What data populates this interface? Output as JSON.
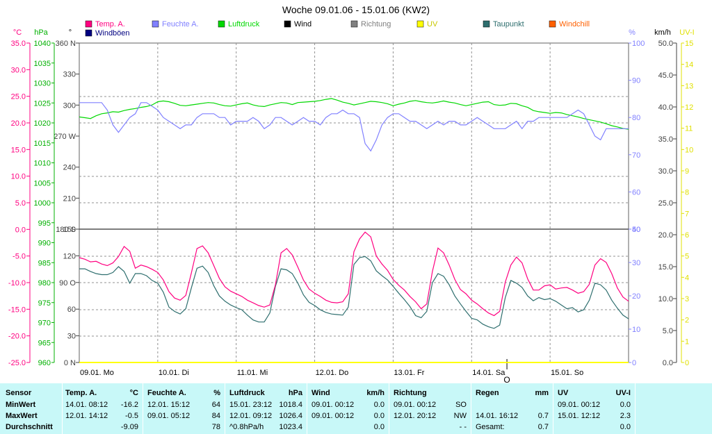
{
  "chart_data": {
    "type": "line",
    "title": "Woche 09.01.06 - 15.01.06 (KW2)",
    "legend": [
      {
        "name": "Temp. A.",
        "color": "#ff0080"
      },
      {
        "name": "Feuchte A.",
        "color": "#8080ff"
      },
      {
        "name": "Luftdruck",
        "color": "#00d800"
      },
      {
        "name": "Wind",
        "color": "#000000"
      },
      {
        "name": "Richtung",
        "color": "#808080"
      },
      {
        "name": "UV",
        "color": "#ffff00"
      },
      {
        "name": "Taupunkt",
        "color": "#2e6e6e"
      },
      {
        "name": "Windchill",
        "color": "#ff6000"
      },
      {
        "name": "Windböen",
        "color": "#000080"
      }
    ],
    "axis_units": {
      "temp": "°C",
      "pressure": "hPa",
      "direction": "°",
      "humidity": "%",
      "wind": "km/h",
      "uv": "UV-I"
    },
    "axes": {
      "temp": {
        "ticks": [
          "35.0",
          "30.0",
          "25.0",
          "20.0",
          "15.0",
          "10.0",
          "5.0",
          "0.0",
          "-5.0",
          "-10.0",
          "-15.0",
          "-20.0",
          "-25.0"
        ],
        "color": "#ff0080",
        "range": [
          -25,
          35
        ]
      },
      "pressure": {
        "ticks": [
          "1040",
          "1035",
          "1030",
          "1025",
          "1020",
          "1015",
          "1010",
          "1005",
          "1000",
          "995",
          "990",
          "985",
          "980",
          "975",
          "970",
          "965",
          "960"
        ],
        "color": "#00b000",
        "range": [
          960,
          1040
        ]
      },
      "direction_upper": {
        "ticks": [
          "360 N",
          "330",
          "300",
          "270 W",
          "240",
          "210",
          "180 S"
        ],
        "range": [
          180,
          360
        ]
      },
      "direction_lower": {
        "ticks": [
          "150",
          "120",
          "90 O",
          "60",
          "30",
          "0 N"
        ],
        "range": [
          0,
          150
        ]
      },
      "humidity_upper": {
        "ticks": [
          "100",
          "90",
          "80",
          "70",
          "60",
          "50"
        ],
        "color": "#8080ff",
        "range": [
          50,
          100
        ]
      },
      "humidity_lower": {
        "ticks": [
          "40",
          "30",
          "20",
          "10",
          "0"
        ],
        "color": "#8080ff",
        "range": [
          0,
          40
        ]
      },
      "wind": {
        "ticks": [
          "50.0",
          "45.0",
          "40.0",
          "35.0",
          "30.0",
          "25.0",
          "20.0",
          "15.0",
          "10.0",
          "5.0",
          "0.0"
        ],
        "range": [
          0,
          50
        ]
      },
      "uv": {
        "ticks": [
          "15",
          "14",
          "13",
          "12",
          "11",
          "10",
          "9",
          "8",
          "7",
          "6",
          "5",
          "4",
          "3",
          "2",
          "1",
          "0"
        ],
        "color": "#e0e000",
        "range": [
          0,
          15
        ]
      }
    },
    "x": {
      "day_labels": [
        "09.01.  Mo",
        "10.01.  Di",
        "11.01.  Mi",
        "12.01.  Do",
        "13.01.  Fr",
        "14.01.  Sa",
        "15.01.  So"
      ],
      "marker_label": "O",
      "marker_pos": 5.45,
      "range": [
        0,
        7
      ]
    },
    "series": [
      {
        "name": "Temp. A.",
        "color": "#ff0080",
        "axis": "temp",
        "values": [
          -5.3,
          -5.6,
          -6.1,
          -6.0,
          -6.5,
          -6.8,
          -6.3,
          -5.1,
          -3.2,
          -4.1,
          -7.3,
          -6.7,
          -7.0,
          -7.5,
          -8.1,
          -9.5,
          -11.7,
          -12.9,
          -13.3,
          -12.4,
          -8.2,
          -3.6,
          -3.1,
          -4.4,
          -6.8,
          -9.2,
          -10.8,
          -11.6,
          -12.1,
          -12.6,
          -13.3,
          -13.8,
          -14.3,
          -14.6,
          -14.2,
          -10.4,
          -4.4,
          -3.6,
          -4.8,
          -7.1,
          -9.5,
          -11.2,
          -12.0,
          -12.6,
          -13.3,
          -13.7,
          -13.8,
          -13.6,
          -12.1,
          -4.2,
          -1.8,
          -0.5,
          -1.4,
          -5.0,
          -6.5,
          -7.7,
          -9.4,
          -10.5,
          -11.4,
          -12.6,
          -13.6,
          -14.9,
          -14.0,
          -7.9,
          -3.5,
          -4.4,
          -6.7,
          -9.4,
          -11.3,
          -12.1,
          -13.3,
          -14.0,
          -14.9,
          -15.7,
          -16.2,
          -15.4,
          -9.9,
          -6.7,
          -5.2,
          -6.3,
          -9.3,
          -11.4,
          -11.4,
          -10.6,
          -10.4,
          -11.2,
          -11.0,
          -10.9,
          -11.4,
          -12.0,
          -11.7,
          -10.3,
          -6.7,
          -5.5,
          -6.2,
          -8.3,
          -11.0,
          -12.7,
          -13.5
        ]
      },
      {
        "name": "Taupunkt",
        "color": "#2e6e6e",
        "axis": "temp",
        "values": [
          -7.4,
          -7.4,
          -7.9,
          -8.3,
          -8.5,
          -8.5,
          -8.1,
          -7.0,
          -7.9,
          -10.1,
          -8.3,
          -8.3,
          -8.7,
          -9.6,
          -10.1,
          -11.8,
          -14.6,
          -15.4,
          -15.9,
          -14.9,
          -11.0,
          -7.3,
          -6.9,
          -8.1,
          -10.6,
          -12.5,
          -13.5,
          -14.2,
          -14.7,
          -15.1,
          -16.1,
          -17.0,
          -17.4,
          -17.4,
          -15.7,
          -10.7,
          -7.4,
          -7.6,
          -8.3,
          -10.1,
          -12.3,
          -13.7,
          -14.3,
          -15.1,
          -15.6,
          -15.9,
          -16.0,
          -16.1,
          -14.6,
          -6.6,
          -5.3,
          -5.1,
          -5.9,
          -7.8,
          -8.7,
          -9.5,
          -10.7,
          -12.0,
          -13.2,
          -14.5,
          -16.2,
          -16.6,
          -15.4,
          -10.0,
          -8.3,
          -8.8,
          -10.4,
          -12.5,
          -14.0,
          -15.4,
          -16.7,
          -17.0,
          -17.8,
          -18.3,
          -18.6,
          -18.0,
          -12.8,
          -9.6,
          -10.1,
          -10.9,
          -12.5,
          -13.4,
          -12.8,
          -13.2,
          -13.0,
          -13.5,
          -14.2,
          -14.9,
          -14.7,
          -15.5,
          -15.1,
          -13.3,
          -10.1,
          -10.4,
          -11.4,
          -13.3,
          -14.8,
          -16.1,
          -16.8
        ]
      },
      {
        "name": "Feuchte A.",
        "color": "#8080ff",
        "axis": "humidity",
        "values": [
          84,
          84,
          84,
          84,
          84,
          82,
          78,
          76,
          78,
          80,
          81,
          84,
          84,
          83,
          82,
          80,
          79,
          78,
          77,
          78,
          78,
          80,
          81,
          81,
          81,
          80,
          80,
          78,
          79,
          79,
          79,
          80,
          79,
          77,
          78,
          80,
          80,
          79,
          78,
          79,
          80,
          79,
          79,
          78,
          80,
          81,
          81,
          82,
          81,
          81,
          80,
          73,
          71,
          74,
          78,
          80,
          81,
          81,
          80,
          79,
          79,
          78,
          77,
          78,
          79,
          78,
          79,
          79,
          78,
          78,
          79,
          80,
          79,
          78,
          77,
          77,
          77,
          78,
          79,
          77,
          79,
          79,
          80,
          80,
          80,
          80,
          80,
          80,
          81,
          82,
          81,
          78,
          75,
          74,
          77,
          77,
          77,
          77,
          77
        ]
      },
      {
        "name": "Luftdruck",
        "color": "#00d800",
        "axis": "pressure",
        "values": [
          1021.5,
          1021.3,
          1021.1,
          1021.8,
          1022.3,
          1022.5,
          1022.8,
          1022.7,
          1023.1,
          1023.4,
          1023.6,
          1023.9,
          1024.1,
          1024.5,
          1025.3,
          1025.5,
          1025.3,
          1024.9,
          1024.4,
          1024.3,
          1024.5,
          1024.7,
          1024.9,
          1025.1,
          1025.0,
          1024.6,
          1024.3,
          1024.2,
          1024.5,
          1024.8,
          1025.0,
          1024.5,
          1024.2,
          1024.1,
          1024.5,
          1024.8,
          1025.1,
          1025.0,
          1024.6,
          1025.1,
          1025.2,
          1025.3,
          1025.4,
          1025.6,
          1025.9,
          1026.1,
          1025.7,
          1025.2,
          1024.9,
          1024.5,
          1024.8,
          1025.1,
          1025.4,
          1025.3,
          1025.1,
          1024.8,
          1024.3,
          1024.7,
          1025.0,
          1025.4,
          1025.6,
          1025.3,
          1025.1,
          1025.0,
          1025.2,
          1025.5,
          1025.2,
          1025.0,
          1024.6,
          1024.3,
          1024.6,
          1024.9,
          1025.2,
          1025.3,
          1024.6,
          1024.4,
          1024.5,
          1024.9,
          1024.8,
          1024.3,
          1023.9,
          1023.1,
          1022.8,
          1022.6,
          1022.4,
          1022.6,
          1022.5,
          1022.1,
          1021.8,
          1021.5,
          1021.1,
          1020.8,
          1020.5,
          1020.2,
          1019.8,
          1019.3,
          1019.0,
          1018.6,
          1018.4
        ]
      },
      {
        "name": "UV",
        "color": "#ffff00",
        "axis": "uv",
        "values": [
          0,
          0,
          0,
          0,
          0,
          0,
          0,
          0,
          0,
          0,
          0,
          0,
          0,
          0,
          0,
          0,
          0,
          0,
          0,
          0,
          0,
          0,
          0,
          0,
          0,
          0,
          0,
          0,
          0,
          0,
          0,
          0,
          0,
          0,
          0,
          0,
          0,
          0,
          0,
          0,
          0,
          0,
          0,
          0,
          0,
          0,
          0,
          0,
          0,
          0,
          0,
          0,
          0,
          0,
          0,
          0,
          0,
          0,
          0,
          0,
          0,
          0,
          0,
          0,
          0,
          0,
          0,
          0,
          0,
          0,
          0,
          0,
          0,
          0,
          0,
          0,
          0,
          0,
          0,
          0,
          0,
          0,
          0,
          0,
          0,
          0,
          0,
          0,
          0,
          0,
          0,
          0,
          0,
          0,
          0,
          0,
          0,
          0,
          0
        ]
      }
    ]
  },
  "stats": {
    "headers": {
      "sensor": "Sensor",
      "temp": "Temp. A.",
      "temp_unit": "°C",
      "hum": "Feuchte A.",
      "hum_unit": "%",
      "press": "Luftdruck",
      "press_unit": "hPa",
      "wind": "Wind",
      "wind_unit": "km/h",
      "dir": "Richtung",
      "rain": "Regen",
      "rain_unit": "mm",
      "uv": "UV",
      "uv_unit": "UV-I"
    },
    "row_labels": [
      "MinWert",
      "MaxWert",
      "Durchschnitt"
    ],
    "temp": [
      {
        "t": "14.01.  08:12",
        "v": "-16.2"
      },
      {
        "t": "12.01.  14:12",
        "v": "-0.5"
      },
      {
        "t": "",
        "v": "-9.09"
      }
    ],
    "hum": [
      {
        "t": "12.01.  15:12",
        "v": "64"
      },
      {
        "t": "09.01.  05:12",
        "v": "84"
      },
      {
        "t": "",
        "v": "78"
      }
    ],
    "press": [
      {
        "t": "15.01.  23:12",
        "v": "1018.4"
      },
      {
        "t": "12.01.  09:12",
        "v": "1026.4"
      },
      {
        "t": "^0.8hPa/h",
        "v": "1023.4"
      }
    ],
    "wind": [
      {
        "t": "09.01.  00:12",
        "v": "0.0"
      },
      {
        "t": "09.01.  00:12",
        "v": "0.0"
      },
      {
        "t": "",
        "v": "0.0"
      }
    ],
    "dir": [
      {
        "t": "09.01.  00:12",
        "v": "SO"
      },
      {
        "t": "12.01.  20:12",
        "v": "NW"
      },
      {
        "t": "",
        "v": "- -"
      }
    ],
    "rain": [
      {
        "t": "",
        "v": ""
      },
      {
        "t": "14.01.  16:12",
        "v": "0.7"
      },
      {
        "t": "Gesamt:",
        "v": "0.7"
      }
    ],
    "uv": [
      {
        "t": "09.01.  00:12",
        "v": "0.0"
      },
      {
        "t": "15.01.  12:12",
        "v": "2.3"
      },
      {
        "t": "",
        "v": "0.0"
      }
    ]
  }
}
